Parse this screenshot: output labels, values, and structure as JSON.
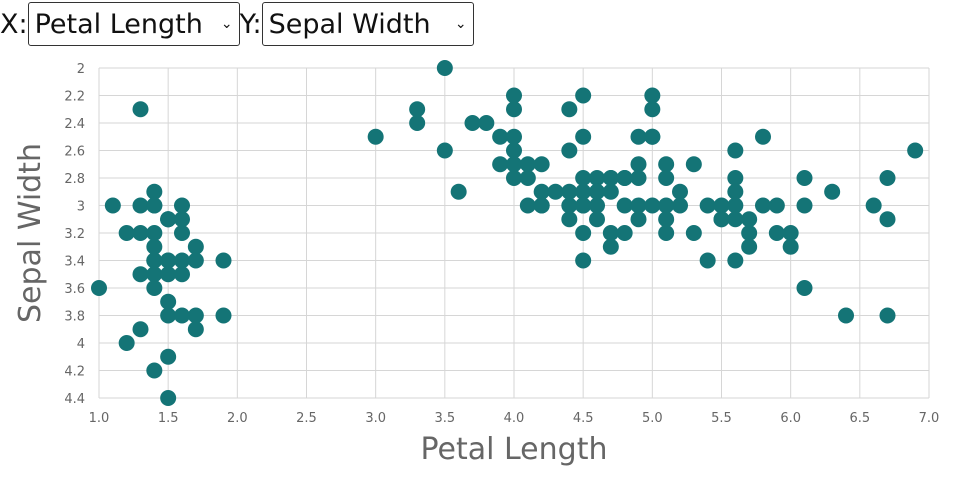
{
  "controls": {
    "x_prefix": "X:",
    "x_selected": "Petal Length",
    "y_prefix": "Y:",
    "y_selected": "Sepal Width",
    "chevron_icon": "chevron-down-icon"
  },
  "colors": {
    "point": "#147476",
    "grid": "#d6d6d6",
    "tick_text": "#666666"
  },
  "chart_data": {
    "type": "scatter",
    "xlabel": "Petal Length",
    "ylabel": "Sepal Width",
    "xlim": [
      1.0,
      7.0
    ],
    "ylim": [
      2.0,
      4.4
    ],
    "y_inverted": true,
    "grid": true,
    "x_ticks": [
      "1.0",
      "1.5",
      "2.0",
      "2.5",
      "3.0",
      "3.5",
      "4.0",
      "4.5",
      "5.0",
      "5.5",
      "6.0",
      "6.5",
      "7.0"
    ],
    "y_ticks": [
      "2",
      "2.2",
      "2.4",
      "2.6",
      "2.8",
      "3",
      "3.2",
      "3.4",
      "3.6",
      "3.8",
      "4",
      "4.2",
      "4.4"
    ],
    "series": [
      {
        "x": [
          1.1,
          1.3,
          1.3,
          1.3,
          1.2,
          1.4,
          1.4,
          1.4,
          1.4,
          1.4,
          1.4,
          1.4,
          1.4,
          1.5,
          1.5,
          1.5,
          1.5,
          1.5,
          1.5,
          1.5,
          1.5,
          1.6,
          1.6,
          1.6,
          1.6,
          1.6,
          1.6,
          1.7,
          1.7,
          1.7,
          1.7,
          1.0,
          1.2,
          1.3,
          1.5,
          1.4,
          1.5,
          1.9,
          1.9,
          1.3,
          1.4
        ],
        "y": [
          3.0,
          3.0,
          3.2,
          3.5,
          3.2,
          2.9,
          3.0,
          3.2,
          3.3,
          3.4,
          3.5,
          3.6,
          4.2,
          3.1,
          3.4,
          3.5,
          3.7,
          3.8,
          4.1,
          4.4,
          3.1,
          3.0,
          3.1,
          3.2,
          3.4,
          3.5,
          3.8,
          3.3,
          3.4,
          3.8,
          3.9,
          3.6,
          4.0,
          3.9,
          3.1,
          3.4,
          3.4,
          3.4,
          3.8,
          2.3,
          3.0
        ]
      },
      {
        "x": [
          3.0,
          3.3,
          3.3,
          3.5,
          3.5,
          3.6,
          3.7,
          3.8,
          3.9,
          3.9,
          4.0,
          4.0,
          4.0,
          4.0,
          4.0,
          4.0,
          4.1,
          4.1,
          4.1,
          4.2,
          4.2,
          4.2,
          4.3,
          4.4,
          4.4,
          4.4,
          4.4,
          4.4,
          4.5,
          4.5,
          4.5,
          4.5,
          4.5,
          4.5,
          4.5,
          4.5,
          4.6,
          4.6,
          4.6,
          4.6,
          4.7,
          4.7,
          4.7,
          4.7,
          4.8,
          4.8,
          4.8,
          4.9,
          4.9,
          4.9,
          4.9,
          4.9,
          5.0,
          5.0,
          5.0,
          5.0,
          5.1,
          5.1,
          5.1,
          5.1,
          5.1,
          5.2,
          5.3,
          5.3,
          5.4,
          5.4,
          5.5,
          5.5,
          5.5,
          5.6,
          5.6,
          5.6,
          5.6,
          5.6,
          5.6,
          5.7,
          5.7,
          5.8,
          5.8,
          5.9,
          5.9,
          6.0,
          6.0,
          6.1,
          6.1,
          6.1,
          6.3,
          6.4,
          6.6,
          6.7,
          6.7,
          6.7,
          6.9,
          4.5,
          4.2,
          4.8,
          5.0,
          4.6,
          4.7,
          5.2,
          5.7
        ],
        "y": [
          2.5,
          2.3,
          2.4,
          2.6,
          2.0,
          2.9,
          2.4,
          2.4,
          2.5,
          2.7,
          2.2,
          2.3,
          2.5,
          2.6,
          2.8,
          2.7,
          2.7,
          2.8,
          3.0,
          2.7,
          2.9,
          3.0,
          2.9,
          2.3,
          2.6,
          3.0,
          3.1,
          2.9,
          2.2,
          2.5,
          2.8,
          2.9,
          3.0,
          3.2,
          3.4,
          3.0,
          2.8,
          2.9,
          3.0,
          3.1,
          2.8,
          2.9,
          3.2,
          3.3,
          2.8,
          3.0,
          3.2,
          2.5,
          2.7,
          2.8,
          3.0,
          3.1,
          2.2,
          2.5,
          3.0,
          2.5,
          2.7,
          2.8,
          3.0,
          3.1,
          3.2,
          3.0,
          2.7,
          3.2,
          3.0,
          3.4,
          3.0,
          3.1,
          3.1,
          2.6,
          2.8,
          2.9,
          3.0,
          3.1,
          3.4,
          3.2,
          3.3,
          2.5,
          3.0,
          3.0,
          3.2,
          3.2,
          3.3,
          2.8,
          3.0,
          3.6,
          2.9,
          3.8,
          3.0,
          2.8,
          3.8,
          3.1,
          2.6,
          3.0,
          3.0,
          2.8,
          2.3,
          2.9,
          2.8,
          2.9,
          3.1
        ]
      }
    ]
  }
}
